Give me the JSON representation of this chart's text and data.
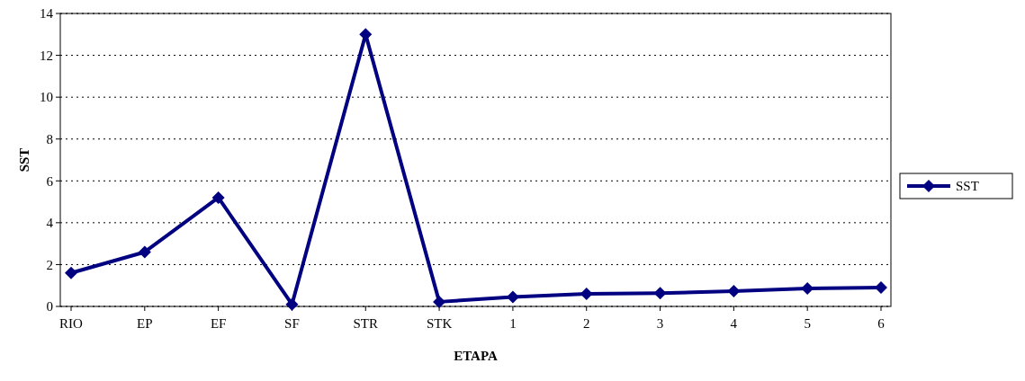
{
  "chart_data": {
    "type": "line",
    "xlabel": "ETAPA",
    "ylabel": "SST",
    "categories": [
      "RIO",
      "EP",
      "EF",
      "SF",
      "STR",
      "STK",
      "1",
      "2",
      "3",
      "4",
      "5",
      "6"
    ],
    "series": [
      {
        "name": "SST",
        "color": "#000080",
        "values": [
          1.6,
          2.6,
          5.2,
          0.1,
          13.0,
          0.22,
          0.45,
          0.6,
          0.63,
          0.73,
          0.86,
          0.9
        ]
      }
    ],
    "ylim": [
      0,
      14
    ],
    "yticks": [
      0,
      2,
      4,
      6,
      8,
      10,
      12,
      14
    ],
    "grid": "y",
    "legend": "right",
    "marker": "diamond",
    "line_style": "solid"
  }
}
